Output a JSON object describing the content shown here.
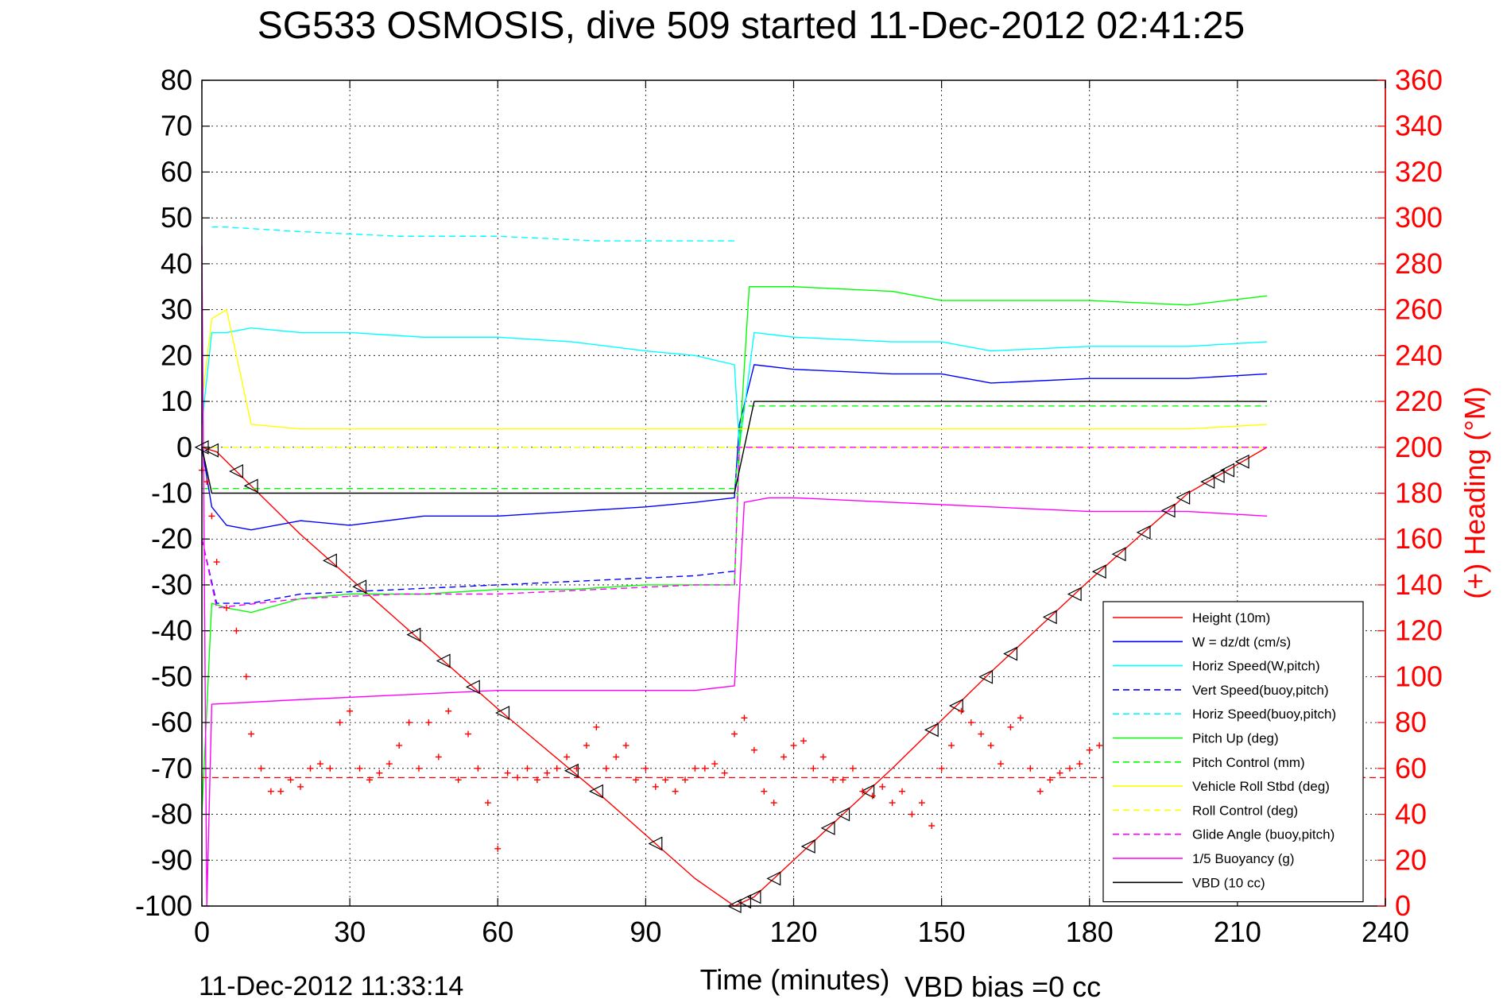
{
  "figure": {
    "title": "SG533 OSMOSIS, dive 509 started 11-Dec-2012 02:41:25",
    "footer_left": "11-Dec-2012 11:33:14",
    "footer_right": "VBD bias =0 cc"
  },
  "chart_data": {
    "type": "line",
    "title": "SG533 OSMOSIS, dive 509 started 11-Dec-2012 02:41:25",
    "xlabel": "Time (minutes)",
    "ylabel": "",
    "ylabel_right": "(+) Heading (°M)",
    "xlim": [
      0,
      240
    ],
    "ylim": [
      -100,
      80
    ],
    "ylim_right": [
      0,
      360
    ],
    "xticks": [
      0,
      30,
      60,
      90,
      120,
      150,
      180,
      210,
      240
    ],
    "yticks": [
      -100,
      -90,
      -80,
      -70,
      -60,
      -50,
      -40,
      -30,
      -20,
      -10,
      0,
      10,
      20,
      30,
      40,
      50,
      60,
      70,
      80
    ],
    "yticks_right": [
      0,
      20,
      40,
      60,
      80,
      100,
      120,
      140,
      160,
      180,
      200,
      220,
      240,
      260,
      280,
      300,
      320,
      340,
      360
    ],
    "grid": true,
    "legend_position": "bottom-right",
    "colors": {
      "red": "#ff0000",
      "blue": "#0000ff",
      "cyan": "#00ffff",
      "green": "#00ff00",
      "yellow": "#ffff00",
      "magenta": "#ff00ff",
      "black": "#000000"
    },
    "series": [
      {
        "name": "Height (10m)",
        "color": "#ff0000",
        "style": "solid",
        "x": [
          0,
          3,
          20,
          40,
          60,
          80,
          100,
          108,
          112,
          120,
          140,
          160,
          180,
          200,
          216
        ],
        "y": [
          0,
          -1,
          -19,
          -38,
          -57,
          -75,
          -94,
          -100,
          -98,
          -90,
          -70,
          -49,
          -29,
          -10,
          0
        ]
      },
      {
        "name": "W = dz/dt (cm/s)",
        "color": "#0000ff",
        "style": "solid",
        "x": [
          0,
          2,
          5,
          10,
          20,
          30,
          45,
          60,
          75,
          90,
          100,
          108,
          109,
          112,
          120,
          140,
          150,
          160,
          180,
          200,
          216
        ],
        "y": [
          0,
          -13,
          -17,
          -18,
          -16,
          -17,
          -15,
          -15,
          -14,
          -13,
          -12,
          -11,
          5,
          18,
          17,
          16,
          16,
          14,
          15,
          15,
          16
        ]
      },
      {
        "name": "Horiz Speed(W,pitch)",
        "color": "#00ffff",
        "style": "solid",
        "x": [
          0,
          2,
          5,
          10,
          20,
          30,
          45,
          60,
          75,
          90,
          100,
          108,
          109,
          112,
          120,
          140,
          150,
          160,
          180,
          200,
          216
        ],
        "y": [
          5,
          25,
          25,
          26,
          25,
          25,
          24,
          24,
          23,
          21,
          20,
          18,
          0,
          25,
          24,
          23,
          23,
          21,
          22,
          22,
          23
        ]
      },
      {
        "name": "Vert Speed(buoy,pitch)",
        "color": "#0000ff",
        "style": "dashed",
        "x": [
          0,
          3,
          10,
          20,
          40,
          60,
          80,
          100,
          108
        ],
        "y": [
          -20,
          -34,
          -34,
          -32,
          -31,
          -30,
          -29,
          -28,
          -27
        ]
      },
      {
        "name": "Horiz Speed(buoy,pitch)",
        "color": "#00ffff",
        "style": "dashed",
        "x": [
          2,
          5,
          20,
          40,
          60,
          80,
          100,
          108
        ],
        "y": [
          48,
          48,
          47,
          46,
          46,
          45,
          45,
          45
        ]
      },
      {
        "name": "Pitch Up (deg)",
        "color": "#00ff00",
        "style": "solid",
        "x": [
          0,
          2,
          5,
          10,
          20,
          30,
          45,
          60,
          75,
          90,
          100,
          108,
          109,
          111,
          120,
          140,
          150,
          160,
          180,
          200,
          216
        ],
        "y": [
          -80,
          -34,
          -35,
          -36,
          -33,
          -32,
          -32,
          -31,
          -31,
          -30,
          -30,
          -30,
          0,
          35,
          35,
          34,
          32,
          32,
          32,
          31,
          33
        ]
      },
      {
        "name": "Pitch Control (mm)",
        "color": "#00ff00",
        "style": "dashed",
        "x": [
          0,
          2,
          20,
          60,
          108,
          110,
          120,
          160,
          216
        ],
        "y": [
          -9,
          -9,
          -9,
          -9,
          -9,
          9,
          9,
          9,
          9
        ]
      },
      {
        "name": "Vehicle Roll Stbd (deg)",
        "color": "#ffff00",
        "style": "solid",
        "x": [
          0,
          2,
          5,
          10,
          20,
          40,
          60,
          80,
          100,
          108,
          110,
          120,
          140,
          160,
          180,
          200,
          216
        ],
        "y": [
          10,
          28,
          30,
          5,
          4,
          4,
          4,
          4,
          4,
          4,
          4,
          4,
          4,
          4,
          4,
          4,
          5
        ]
      },
      {
        "name": "Roll Control (deg)",
        "color": "#ffff00",
        "style": "dashed",
        "x": [
          0,
          5,
          10,
          30,
          60,
          90,
          108,
          120,
          150,
          180,
          216
        ],
        "y": [
          0,
          0,
          0,
          0,
          0,
          0,
          0,
          0,
          0,
          0,
          0
        ]
      },
      {
        "name": "Glide Angle (buoy,pitch)",
        "color": "#ff00ff",
        "style": "dashed",
        "x": [
          0,
          3,
          20,
          40,
          60,
          80,
          100,
          108,
          109,
          120,
          160,
          216
        ],
        "y": [
          -20,
          -35,
          -33,
          -32,
          -32,
          -31,
          -30,
          -30,
          0,
          0,
          0,
          0
        ]
      },
      {
        "name": "1/5 Buoyancy (g)",
        "color": "#ff00ff",
        "style": "solid",
        "x": [
          0,
          1,
          2,
          20,
          40,
          60,
          80,
          100,
          108,
          110,
          115,
          120,
          140,
          160,
          180,
          200,
          216
        ],
        "y": [
          44,
          -100,
          -56,
          -55,
          -54,
          -53,
          -53,
          -53,
          -52,
          -12,
          -11,
          -11,
          -12,
          -13,
          -14,
          -14,
          -15
        ]
      },
      {
        "name": "VBD (10 cc)",
        "color": "#000000",
        "style": "solid",
        "x": [
          0,
          2,
          20,
          60,
          108,
          110,
          112,
          120,
          160,
          216
        ],
        "y": [
          0,
          -10,
          -10,
          -10,
          -10,
          0,
          10,
          10,
          10,
          10
        ]
      }
    ],
    "heading": {
      "name": "Heading",
      "axis": "right",
      "color": "#ff0000",
      "marker": "+",
      "reference_line": 56,
      "x": [
        0,
        1,
        2,
        3,
        5,
        7,
        9,
        10,
        12,
        14,
        16,
        18,
        20,
        22,
        24,
        26,
        28,
        30,
        32,
        34,
        36,
        38,
        40,
        42,
        44,
        46,
        48,
        50,
        52,
        54,
        56,
        58,
        60,
        62,
        64,
        66,
        68,
        70,
        72,
        74,
        76,
        78,
        80,
        82,
        84,
        86,
        88,
        90,
        92,
        94,
        96,
        98,
        100,
        102,
        104,
        106,
        108,
        110,
        112,
        114,
        116,
        118,
        120,
        122,
        124,
        126,
        128,
        130,
        132,
        134,
        136,
        138,
        140,
        142,
        144,
        146,
        148,
        150,
        152,
        154,
        156,
        158,
        160,
        162,
        164,
        166,
        168,
        170,
        172,
        174,
        176,
        178,
        180,
        182,
        184,
        186
      ],
      "y": [
        190,
        185,
        170,
        150,
        130,
        120,
        100,
        75,
        60,
        50,
        50,
        55,
        52,
        60,
        62,
        60,
        80,
        85,
        60,
        55,
        58,
        62,
        70,
        80,
        60,
        80,
        65,
        85,
        55,
        75,
        60,
        45,
        25,
        58,
        56,
        60,
        55,
        58,
        60,
        65,
        60,
        70,
        78,
        60,
        65,
        70,
        55,
        60,
        52,
        55,
        50,
        55,
        60,
        60,
        62,
        58,
        75,
        82,
        68,
        50,
        45,
        65,
        70,
        72,
        60,
        65,
        55,
        55,
        60,
        50,
        48,
        52,
        45,
        50,
        40,
        45,
        35,
        60,
        70,
        85,
        80,
        75,
        70,
        62,
        78,
        82,
        60,
        50,
        55,
        58,
        60,
        62,
        68,
        70,
        72,
        75
      ]
    },
    "height_markers": {
      "series": "Height (10m)",
      "marker": "triangle",
      "x": [
        0,
        2,
        7,
        10,
        26,
        32,
        43,
        49,
        55,
        61,
        75,
        80,
        92,
        108,
        110,
        112,
        116,
        123,
        127,
        130,
        135,
        148,
        153,
        159,
        164,
        172,
        177,
        182,
        186,
        191,
        196,
        199,
        204,
        206,
        208,
        211
      ]
    }
  }
}
